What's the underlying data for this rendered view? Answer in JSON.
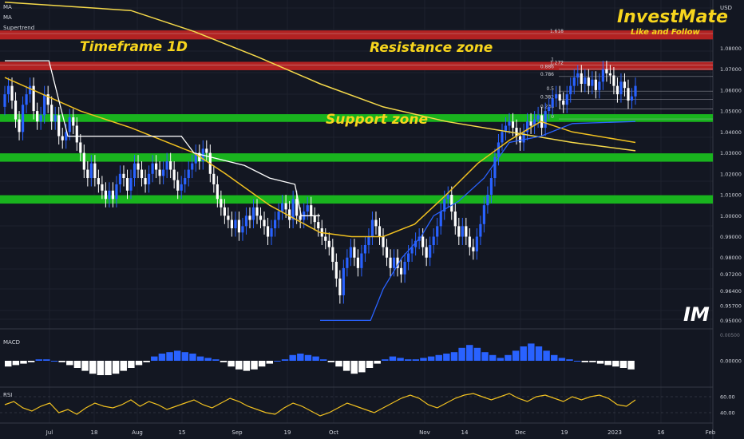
{
  "indicators_legend": [
    "MA",
    "MA",
    "Supertrend"
  ],
  "overlays": {
    "timeframe": "Timeframe 1D",
    "resistance": "Resistance zone",
    "support": "Support zone",
    "brand": "InvestMate",
    "brand_sub": "Like and Follow",
    "watermark": "IM"
  },
  "colors": {
    "background": "#131722",
    "up_candle": "#2962ff",
    "down_candle": "#ffffff",
    "ma_fast": "#f5d94a",
    "ma_slow": "#f0c020",
    "supertrend_line": "#ffffff",
    "supertrend_up": "#2962ff",
    "resistance_band": "#b22222",
    "support_band": "#19b31e",
    "macd_pos": "#2962ff",
    "macd_neg": "#ffffff",
    "rsi": "#f0c020",
    "brand": "#f7d51d"
  },
  "chart_data": [
    {
      "type": "candlestick",
      "pane": "price",
      "currency": "USD",
      "ylim": [
        0.9475,
        1.1015
      ],
      "y_ticks": [
        "1.08000",
        "1.07000",
        "1.06000",
        "1.05000",
        "1.04000",
        "1.03000",
        "1.02000",
        "1.01000",
        "1.00000",
        "0.99000",
        "0.98000",
        "0.97200",
        "0.96400",
        "0.95700",
        "0.95000"
      ],
      "x_ticks": [
        "Jul",
        "18",
        "Aug",
        "15",
        "Sep",
        "19",
        "Oct",
        "Nov",
        "14",
        "Dec",
        "19",
        "2023",
        "16",
        "Feb"
      ],
      "resistance_zones": [
        [
          1.0842,
          1.0885
        ],
        [
          1.0695,
          1.0735
        ]
      ],
      "support_zones": [
        [
          1.0448,
          1.0485
        ],
        [
          1.0258,
          1.0298
        ],
        [
          1.0058,
          1.0098
        ]
      ],
      "fib_levels": [
        {
          "label": "1.618",
          "value": 1.087
        },
        {
          "label": "1.272",
          "value": 1.072
        },
        {
          "label": "1",
          "value": 1.0735
        },
        {
          "label": "0.886",
          "value": 1.07
        },
        {
          "label": "0.786",
          "value": 1.0665
        },
        {
          "label": "0.5",
          "value": 1.0595
        },
        {
          "label": "0.382",
          "value": 1.0555
        },
        {
          "label": "0.236",
          "value": 1.051
        },
        {
          "label": "0",
          "value": 1.0462
        }
      ],
      "candles_start": 1.052,
      "candles": [
        [
          0.98,
          1.058
        ],
        [
          0.99,
          1.062
        ],
        [
          0.985,
          1.055
        ],
        [
          0.975,
          1.046
        ],
        [
          0.97,
          1.04
        ],
        [
          0.98,
          1.053
        ],
        [
          0.985,
          1.058
        ],
        [
          0.99,
          1.062
        ],
        [
          0.975,
          1.05
        ],
        [
          0.98,
          1.045
        ],
        [
          0.97,
          1.048
        ],
        [
          0.975,
          1.058
        ],
        [
          0.985,
          1.053
        ],
        [
          0.975,
          1.045
        ],
        [
          0.975,
          1.048
        ],
        [
          0.97,
          1.038
        ],
        [
          0.965,
          1.036
        ],
        [
          0.97,
          1.04
        ],
        [
          0.98,
          1.047
        ],
        [
          0.975,
          1.043
        ],
        [
          0.96,
          1.035
        ],
        [
          0.96,
          1.03
        ],
        [
          0.955,
          1.022
        ],
        [
          0.95,
          1.018
        ],
        [
          0.96,
          1.025
        ],
        [
          0.96,
          1.018
        ],
        [
          0.955,
          1.015
        ],
        [
          0.955,
          1.012
        ],
        [
          0.95,
          1.008
        ],
        [
          0.955,
          1.012
        ],
        [
          0.955,
          1.008
        ],
        [
          0.96,
          1.015
        ],
        [
          0.965,
          1.02
        ],
        [
          0.965,
          1.018
        ],
        [
          0.96,
          1.012
        ],
        [
          0.965,
          1.018
        ],
        [
          0.97,
          1.025
        ],
        [
          0.965,
          1.022
        ],
        [
          0.965,
          1.018
        ],
        [
          0.96,
          1.015
        ],
        [
          0.965,
          1.02
        ],
        [
          0.97,
          1.025
        ],
        [
          0.965,
          1.022
        ],
        [
          0.965,
          1.019
        ],
        [
          0.965,
          1.022
        ],
        [
          0.97,
          1.026
        ],
        [
          0.965,
          1.022
        ],
        [
          0.965,
          1.017
        ],
        [
          0.96,
          1.012
        ],
        [
          0.96,
          1.015
        ],
        [
          0.965,
          1.018
        ],
        [
          0.965,
          1.022
        ],
        [
          0.96,
          1.025
        ],
        [
          0.96,
          1.03
        ],
        [
          0.955,
          1.026
        ],
        [
          0.955,
          1.032
        ],
        [
          0.95,
          1.03
        ],
        [
          0.955,
          1.02
        ],
        [
          0.96,
          1.015
        ],
        [
          0.965,
          1.008
        ],
        [
          0.95,
          1.004
        ],
        [
          0.96,
          1.0
        ],
        [
          0.96,
          0.998
        ],
        [
          0.955,
          0.994
        ],
        [
          0.96,
          0.998
        ],
        [
          0.96,
          0.992
        ],
        [
          0.955,
          0.995
        ],
        [
          0.96,
          1.0
        ],
        [
          0.965,
          0.998
        ],
        [
          0.96,
          1.004
        ],
        [
          0.96,
          1.0
        ],
        [
          0.955,
          0.998
        ],
        [
          0.96,
          0.995
        ],
        [
          0.95,
          0.99
        ],
        [
          0.955,
          0.994
        ],
        [
          0.96,
          0.998
        ],
        [
          0.96,
          1.002
        ],
        [
          0.965,
          1.006
        ],
        [
          0.955,
          1.003
        ],
        [
          0.95,
          0.998
        ],
        [
          0.965,
          1.008
        ],
        [
          0.96,
          1.0
        ],
        [
          0.97,
          0.998
        ],
        [
          0.97,
          1.002
        ],
        [
          0.965,
          1.005
        ],
        [
          0.955,
          1.0
        ],
        [
          0.96,
          0.997
        ],
        [
          0.955,
          0.994
        ],
        [
          0.96,
          0.99
        ],
        [
          0.95,
          0.988
        ],
        [
          0.955,
          0.985
        ],
        [
          0.955,
          0.978
        ],
        [
          0.95,
          0.97
        ],
        [
          0.945,
          0.962
        ],
        [
          0.96,
          0.975
        ],
        [
          0.96,
          0.98
        ],
        [
          0.965,
          0.985
        ],
        [
          0.965,
          0.98
        ],
        [
          0.96,
          0.975
        ],
        [
          0.97,
          0.982
        ],
        [
          0.97,
          0.986
        ],
        [
          0.975,
          0.99
        ],
        [
          0.985,
          0.998
        ],
        [
          0.985,
          0.995
        ],
        [
          0.98,
          0.99
        ],
        [
          0.98,
          0.985
        ],
        [
          0.975,
          0.98
        ],
        [
          0.97,
          0.975
        ],
        [
          0.975,
          0.98
        ],
        [
          0.975,
          0.975
        ],
        [
          0.97,
          0.972
        ],
        [
          0.975,
          0.978
        ],
        [
          0.975,
          0.982
        ],
        [
          0.98,
          0.985
        ],
        [
          0.98,
          0.988
        ],
        [
          0.985,
          0.99
        ],
        [
          0.985,
          0.985
        ],
        [
          0.98,
          0.98
        ],
        [
          0.985,
          0.986
        ],
        [
          0.995,
          0.99
        ],
        [
          0.99,
          0.995
        ],
        [
          0.99,
          1.002
        ],
        [
          0.995,
          1.008
        ],
        [
          0.995,
          1.01
        ],
        [
          1.0,
          1.002
        ],
        [
          1.0,
          0.995
        ],
        [
          0.995,
          0.99
        ],
        [
          0.99,
          0.995
        ],
        [
          0.985,
          0.99
        ],
        [
          0.98,
          0.985
        ],
        [
          0.975,
          0.983
        ],
        [
          0.985,
          0.99
        ],
        [
          0.985,
          0.996
        ],
        [
          0.995,
          1.005
        ],
        [
          1.0,
          1.01
        ],
        [
          0.995,
          1.018
        ],
        [
          1.015,
          1.028
        ],
        [
          1.02,
          1.035
        ],
        [
          1.03,
          1.04
        ],
        [
          1.035,
          1.043
        ],
        [
          1.03,
          1.045
        ],
        [
          1.035,
          1.042
        ],
        [
          1.03,
          1.038
        ],
        [
          1.025,
          1.035
        ],
        [
          1.03,
          1.04
        ],
        [
          1.035,
          1.045
        ],
        [
          1.04,
          1.043
        ],
        [
          1.035,
          1.046
        ],
        [
          1.04,
          1.048
        ],
        [
          1.035,
          1.042
        ],
        [
          1.04,
          1.05
        ],
        [
          1.045,
          1.052
        ],
        [
          1.05,
          1.056
        ],
        [
          1.045,
          1.058
        ],
        [
          1.05,
          1.055
        ],
        [
          1.045,
          1.053
        ],
        [
          1.05,
          1.058
        ],
        [
          1.055,
          1.062
        ],
        [
          1.06,
          1.066
        ],
        [
          1.06,
          1.068
        ],
        [
          1.055,
          1.063
        ],
        [
          1.06,
          1.066
        ],
        [
          1.055,
          1.062
        ],
        [
          1.06,
          1.065
        ],
        [
          1.055,
          1.06
        ],
        [
          1.06,
          1.064
        ],
        [
          1.065,
          1.07
        ],
        [
          1.06,
          1.068
        ],
        [
          1.065,
          1.067
        ],
        [
          1.06,
          1.062
        ],
        [
          1.055,
          1.058
        ],
        [
          1.06,
          1.064
        ],
        [
          1.06,
          1.061
        ],
        [
          1.052,
          1.055
        ],
        [
          1.05,
          1.057
        ],
        [
          1.055,
          1.062
        ]
      ],
      "ma_slow": [
        [
          0,
          1.066
        ],
        [
          0.06,
          1.058
        ],
        [
          0.12,
          1.05
        ],
        [
          0.2,
          1.042
        ],
        [
          0.3,
          1.03
        ],
        [
          0.35,
          1.02
        ],
        [
          0.42,
          1.005
        ],
        [
          0.5,
          0.992
        ],
        [
          0.55,
          0.99
        ],
        [
          0.6,
          0.99
        ],
        [
          0.65,
          0.996
        ],
        [
          0.7,
          1.01
        ],
        [
          0.75,
          1.025
        ],
        [
          0.8,
          1.036
        ],
        [
          0.85,
          1.045
        ],
        [
          0.9,
          1.04
        ],
        [
          1.0,
          1.035
        ]
      ],
      "ma_fast": [
        [
          0,
          1.102
        ],
        [
          0.2,
          1.098
        ],
        [
          0.3,
          1.088
        ],
        [
          0.4,
          1.076
        ],
        [
          0.5,
          1.063
        ],
        [
          0.6,
          1.052
        ],
        [
          0.7,
          1.045
        ],
        [
          0.8,
          1.04
        ],
        [
          0.9,
          1.035
        ],
        [
          1.0,
          1.031
        ]
      ],
      "supertrend_line": [
        [
          0,
          1.074
        ],
        [
          0.07,
          1.074
        ],
        [
          0.09,
          1.05
        ],
        [
          0.1,
          1.038
        ],
        [
          0.2,
          1.038
        ],
        [
          0.28,
          1.038
        ],
        [
          0.3,
          1.03
        ],
        [
          0.38,
          1.024
        ],
        [
          0.42,
          1.018
        ],
        [
          0.46,
          1.015
        ],
        [
          0.47,
          1.0
        ],
        [
          0.5,
          1.0
        ]
      ],
      "supertrend_up": [
        [
          0.5,
          0.95
        ],
        [
          0.58,
          0.95
        ],
        [
          0.6,
          0.965
        ],
        [
          0.63,
          0.98
        ],
        [
          0.66,
          0.99
        ],
        [
          0.68,
          1.0
        ],
        [
          0.72,
          1.007
        ],
        [
          0.76,
          1.018
        ],
        [
          0.8,
          1.035
        ],
        [
          0.85,
          1.038
        ],
        [
          0.9,
          1.044
        ],
        [
          1.0,
          1.045
        ]
      ]
    },
    {
      "type": "bar",
      "pane": "macd",
      "label": "MACD",
      "y_ticks": [
        "0.00000"
      ],
      "values": [
        -0.4,
        -0.3,
        -0.2,
        -0.1,
        0.1,
        0.1,
        0,
        -0.1,
        -0.3,
        -0.5,
        -0.7,
        -0.9,
        -1.0,
        -1.0,
        -0.9,
        -0.7,
        -0.5,
        -0.3,
        -0.1,
        0.3,
        0.5,
        0.6,
        0.7,
        0.6,
        0.5,
        0.3,
        0.2,
        0.1,
        -0.1,
        -0.4,
        -0.6,
        -0.7,
        -0.6,
        -0.4,
        -0.2,
        0,
        0.1,
        0.4,
        0.5,
        0.4,
        0.3,
        0.1,
        -0.1,
        -0.4,
        -0.7,
        -0.9,
        -0.8,
        -0.5,
        -0.2,
        0.1,
        0.3,
        0.2,
        0.1,
        0.1,
        0.2,
        0.3,
        0.4,
        0.5,
        0.6,
        0.9,
        1.1,
        0.9,
        0.6,
        0.4,
        0.2,
        0.4,
        0.7,
        1.0,
        1.2,
        1.0,
        0.7,
        0.4,
        0.2,
        0.1,
        0,
        -0.1,
        -0.1,
        -0.2,
        -0.3,
        -0.4,
        -0.5,
        -0.6
      ]
    },
    {
      "type": "line",
      "pane": "rsi",
      "label": "RSI",
      "y_ticks": [
        "60.00",
        "40.00"
      ],
      "values": [
        50,
        54,
        46,
        42,
        48,
        52,
        40,
        44,
        38,
        46,
        52,
        48,
        46,
        50,
        56,
        48,
        54,
        50,
        44,
        48,
        52,
        56,
        50,
        46,
        52,
        58,
        54,
        48,
        44,
        40,
        38,
        46,
        52,
        48,
        42,
        36,
        40,
        46,
        52,
        48,
        44,
        40,
        46,
        52,
        58,
        62,
        58,
        50,
        46,
        52,
        58,
        62,
        64,
        60,
        56,
        60,
        64,
        58,
        54,
        60,
        62,
        58,
        54,
        60,
        56,
        60,
        62,
        58,
        50,
        48,
        56
      ]
    }
  ]
}
